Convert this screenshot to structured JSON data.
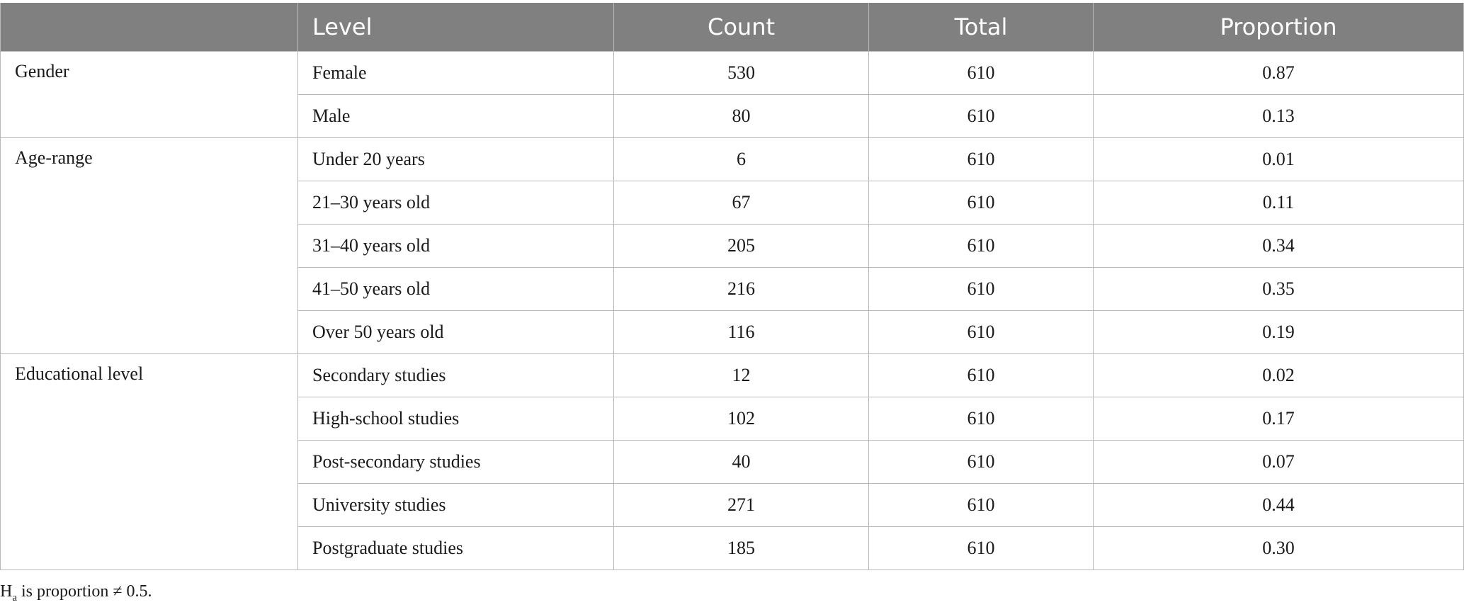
{
  "table": {
    "headers": [
      "",
      "Level",
      "Count",
      "Total",
      "Proportion"
    ],
    "groups": [
      {
        "name": "Gender",
        "rows": [
          {
            "level": "Female",
            "count": "530",
            "total": "610",
            "proportion": "0.87"
          },
          {
            "level": "Male",
            "count": "80",
            "total": "610",
            "proportion": "0.13"
          }
        ]
      },
      {
        "name": "Age-range",
        "rows": [
          {
            "level": "Under 20 years",
            "count": "6",
            "total": "610",
            "proportion": "0.01"
          },
          {
            "level": "21–30 years old",
            "count": "67",
            "total": "610",
            "proportion": "0.11"
          },
          {
            "level": "31–40 years old",
            "count": "205",
            "total": "610",
            "proportion": "0.34"
          },
          {
            "level": "41–50 years old",
            "count": "216",
            "total": "610",
            "proportion": "0.35"
          },
          {
            "level": "Over 50 years old",
            "count": "116",
            "total": "610",
            "proportion": "0.19"
          }
        ]
      },
      {
        "name": "Educational level",
        "rows": [
          {
            "level": "Secondary studies",
            "count": "12",
            "total": "610",
            "proportion": "0.02"
          },
          {
            "level": "High-school studies",
            "count": "102",
            "total": "610",
            "proportion": "0.17"
          },
          {
            "level": "Post-secondary studies",
            "count": "40",
            "total": "610",
            "proportion": "0.07"
          },
          {
            "level": "University studies",
            "count": "271",
            "total": "610",
            "proportion": "0.44"
          },
          {
            "level": "Postgraduate studies",
            "count": "185",
            "total": "610",
            "proportion": "0.30"
          }
        ]
      }
    ]
  },
  "footnote": {
    "symbol": "H",
    "subscript": "a",
    "text": " is proportion ≠ 0.5."
  }
}
